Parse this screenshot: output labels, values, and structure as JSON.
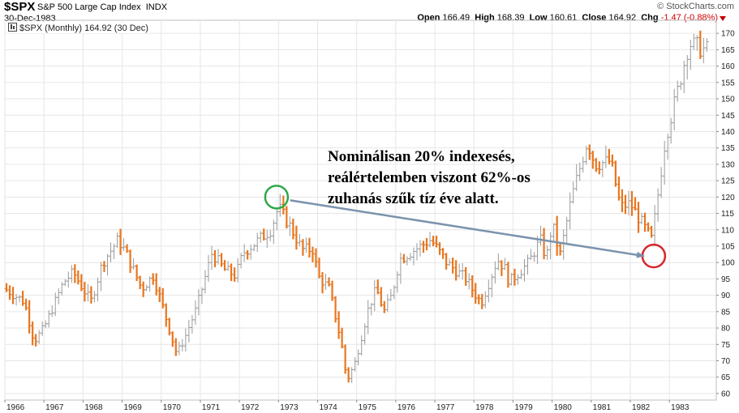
{
  "header": {
    "symbol": "$SPX",
    "name": "S&P 500 Large Cap Index",
    "exchange": "INDX",
    "date": "30-Dec-1983",
    "watermark": "© StockCharts.com",
    "open_label": "Open",
    "open_value": "166.49",
    "high_label": "High",
    "high_value": "168.39",
    "low_label": "Low",
    "low_value": "160.61",
    "close_label": "Close",
    "close_value": "164.92",
    "chg_label": "Chg",
    "chg_value": "-1.47 (-0.88%)"
  },
  "legend": {
    "text": "$SPX (Monthly) 164.92 (30 Dec)"
  },
  "annotation": {
    "line1": "Nominálisan 20% indexesés,",
    "line2": "reálértelemben viszont 62%-os",
    "line3": "zuhanás szűk tíz éve alatt."
  },
  "chart_data": {
    "type": "ohlc",
    "interval": "monthly",
    "title": "",
    "xlabel": "",
    "ylabel": "",
    "x_ticks": [
      "1966",
      "1967",
      "1968",
      "1969",
      "1970",
      "1971",
      "1972",
      "1973",
      "1974",
      "1975",
      "1976",
      "1977",
      "1978",
      "1979",
      "1980",
      "1981",
      "1982",
      "1983"
    ],
    "y_ticks": [
      60,
      65,
      70,
      75,
      80,
      85,
      90,
      95,
      100,
      105,
      110,
      115,
      120,
      125,
      130,
      135,
      140,
      145,
      150,
      155,
      160,
      165,
      170
    ],
    "ylim": [
      58,
      174
    ],
    "xlim": [
      1966.0,
      1984.2
    ],
    "up_color": "#9a9a9a",
    "down_color": "#e8761f",
    "grid": true,
    "key_points": [
      {
        "t": 1966.0,
        "v": 92
      },
      {
        "t": 1966.5,
        "v": 88
      },
      {
        "t": 1966.75,
        "v": 76
      },
      {
        "t": 1967.0,
        "v": 80
      },
      {
        "t": 1967.5,
        "v": 94
      },
      {
        "t": 1967.75,
        "v": 97
      },
      {
        "t": 1968.2,
        "v": 88
      },
      {
        "t": 1968.5,
        "v": 100
      },
      {
        "t": 1968.9,
        "v": 107
      },
      {
        "t": 1969.1,
        "v": 103
      },
      {
        "t": 1969.5,
        "v": 92
      },
      {
        "t": 1969.8,
        "v": 96
      },
      {
        "t": 1970.0,
        "v": 88
      },
      {
        "t": 1970.4,
        "v": 72
      },
      {
        "t": 1970.6,
        "v": 77
      },
      {
        "t": 1970.9,
        "v": 86
      },
      {
        "t": 1971.3,
        "v": 103
      },
      {
        "t": 1971.6,
        "v": 98
      },
      {
        "t": 1971.9,
        "v": 96
      },
      {
        "t": 1972.1,
        "v": 103
      },
      {
        "t": 1972.5,
        "v": 107
      },
      {
        "t": 1972.8,
        "v": 110
      },
      {
        "t": 1973.0,
        "v": 117
      },
      {
        "t": 1973.3,
        "v": 111
      },
      {
        "t": 1973.6,
        "v": 104
      },
      {
        "t": 1973.9,
        "v": 104
      },
      {
        "t": 1974.0,
        "v": 96
      },
      {
        "t": 1974.3,
        "v": 92
      },
      {
        "t": 1974.6,
        "v": 76
      },
      {
        "t": 1974.75,
        "v": 64
      },
      {
        "t": 1974.95,
        "v": 69
      },
      {
        "t": 1975.3,
        "v": 86
      },
      {
        "t": 1975.5,
        "v": 92
      },
      {
        "t": 1975.7,
        "v": 85
      },
      {
        "t": 1975.9,
        "v": 90
      },
      {
        "t": 1976.1,
        "v": 101
      },
      {
        "t": 1976.5,
        "v": 104
      },
      {
        "t": 1976.9,
        "v": 107
      },
      {
        "t": 1977.3,
        "v": 100
      },
      {
        "t": 1977.8,
        "v": 95
      },
      {
        "t": 1978.1,
        "v": 89
      },
      {
        "t": 1978.2,
        "v": 88
      },
      {
        "t": 1978.6,
        "v": 101
      },
      {
        "t": 1978.8,
        "v": 98
      },
      {
        "t": 1978.9,
        "v": 94
      },
      {
        "t": 1979.4,
        "v": 100
      },
      {
        "t": 1979.7,
        "v": 107
      },
      {
        "t": 1979.85,
        "v": 101
      },
      {
        "t": 1980.0,
        "v": 112
      },
      {
        "t": 1980.2,
        "v": 102
      },
      {
        "t": 1980.5,
        "v": 120
      },
      {
        "t": 1980.9,
        "v": 137
      },
      {
        "t": 1981.1,
        "v": 130
      },
      {
        "t": 1981.5,
        "v": 131
      },
      {
        "t": 1981.75,
        "v": 117
      },
      {
        "t": 1982.0,
        "v": 118
      },
      {
        "t": 1982.3,
        "v": 112
      },
      {
        "t": 1982.55,
        "v": 107
      },
      {
        "t": 1982.7,
        "v": 120
      },
      {
        "t": 1982.9,
        "v": 138
      },
      {
        "t": 1983.2,
        "v": 152
      },
      {
        "t": 1983.5,
        "v": 167
      },
      {
        "t": 1983.9,
        "v": 165
      }
    ],
    "annotations": [
      {
        "type": "circle",
        "color": "#2ea84a",
        "at": {
          "t": 1972.95,
          "v": 120
        }
      },
      {
        "type": "circle",
        "color": "#d8262e",
        "at": {
          "t": 1982.6,
          "v": 102
        }
      },
      {
        "type": "arrow",
        "color": "#7a93ad",
        "from": {
          "t": 1973.3,
          "v": 119
        },
        "to": {
          "t": 1982.35,
          "v": 102
        }
      }
    ]
  }
}
